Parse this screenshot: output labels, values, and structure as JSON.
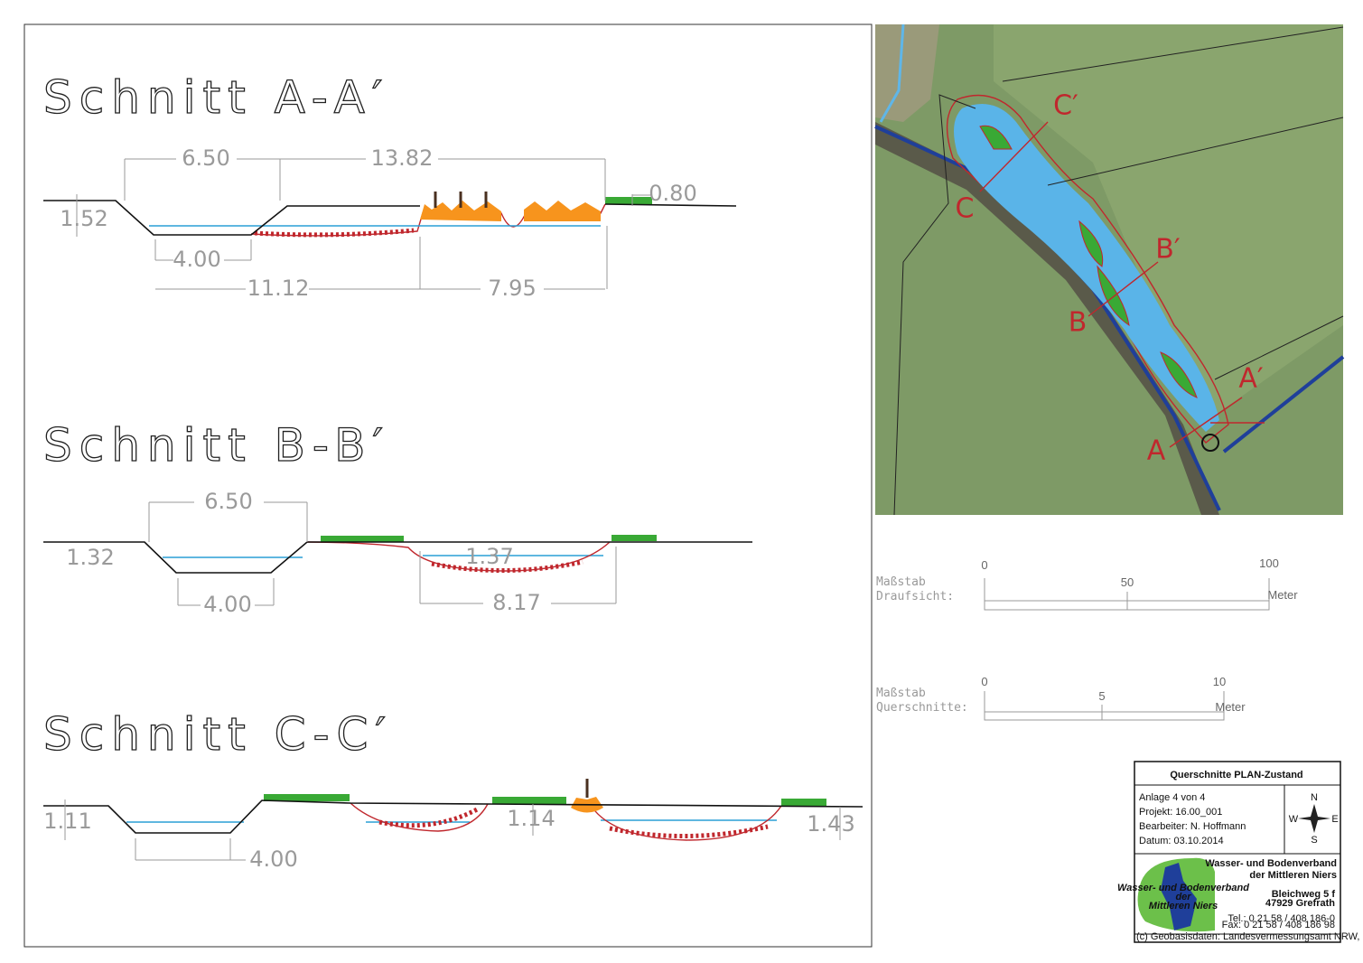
{
  "sections": [
    {
      "title": "Schnitt A-A′",
      "dimensions": [
        "6.50",
        "13.82",
        "0.80",
        "1.52",
        "4.00",
        "11.12",
        "7.95"
      ]
    },
    {
      "title": "Schnitt B-B′",
      "dimensions": [
        "6.50",
        "1.32",
        "1.37",
        "4.00",
        "8.17"
      ]
    },
    {
      "title": "Schnitt C-C′",
      "dimensions": [
        "1.11",
        "1.14",
        "1.43",
        "4.00"
      ]
    }
  ],
  "map": {
    "labels": [
      "C′",
      "C",
      "B′",
      "B",
      "A′",
      "A"
    ]
  },
  "scales": [
    {
      "label": [
        "Maßstab",
        "Draufsicht:"
      ],
      "ticks": [
        "0",
        "50",
        "100"
      ],
      "unit": "Meter"
    },
    {
      "label": [
        "Maßstab",
        "Querschnitte:"
      ],
      "ticks": [
        "0",
        "5",
        "10"
      ],
      "unit": "Meter"
    }
  ],
  "title_block": {
    "title": "Querschnitte PLAN-Zustand",
    "info": [
      "Anlage 4 von 4",
      "Projekt: 16.00_001",
      "Bearbeiter: N. Hoffmann",
      "Datum: 03.10.2014"
    ],
    "compass": [
      "N",
      "W",
      "E",
      "S"
    ],
    "organisation": [
      "Wasser- und Bodenverband",
      "der Mittleren Niers"
    ],
    "address": [
      "Bleichweg 5 f",
      "47929 Grefrath"
    ],
    "contact": [
      "Tel.: 0 21 58 / 408 186-0",
      "Fax: 0 21 58 / 408 186 98"
    ],
    "logo_text": [
      "Wasser- und Bodenverband",
      "der",
      "Mittleren Niers"
    ],
    "copyright": "(c) Geobasisdaten: Landesvermessungsamt NRW, Bonn"
  }
}
